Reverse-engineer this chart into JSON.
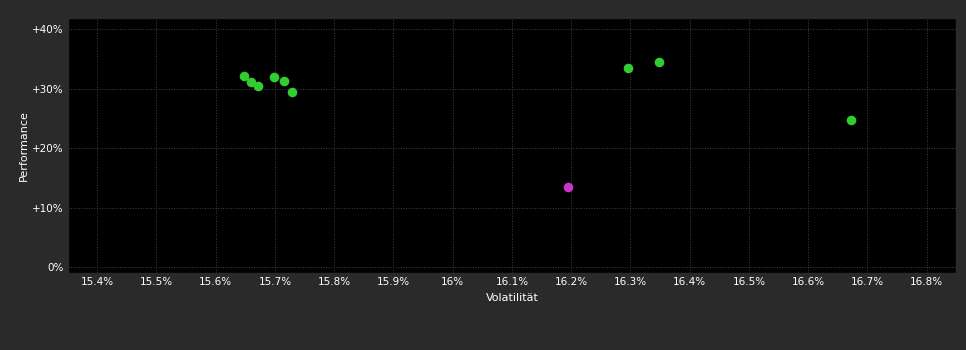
{
  "background_color": "#2a2a2a",
  "plot_bg_color": "#000000",
  "grid_color": "#404040",
  "text_color": "#ffffff",
  "xlabel": "Volatilität",
  "ylabel": "Performance",
  "xlim": [
    15.35,
    16.85
  ],
  "ylim": [
    -1,
    42
  ],
  "xticks": [
    15.4,
    15.5,
    15.6,
    15.7,
    15.8,
    15.9,
    16.0,
    16.1,
    16.2,
    16.3,
    16.4,
    16.5,
    16.6,
    16.7,
    16.8
  ],
  "yticks": [
    0,
    10,
    20,
    30,
    40
  ],
  "green_points": [
    [
      15.648,
      32.2
    ],
    [
      15.66,
      31.2
    ],
    [
      15.672,
      30.5
    ],
    [
      15.698,
      32.0
    ],
    [
      15.715,
      31.3
    ],
    [
      15.728,
      29.5
    ],
    [
      16.295,
      33.5
    ],
    [
      16.348,
      34.5
    ],
    [
      16.672,
      24.8
    ]
  ],
  "magenta_points": [
    [
      16.195,
      13.5
    ]
  ],
  "green_color": "#33cc33",
  "magenta_color": "#cc33cc",
  "marker_size": 48,
  "font_size_label": 8,
  "font_size_tick": 7.5
}
